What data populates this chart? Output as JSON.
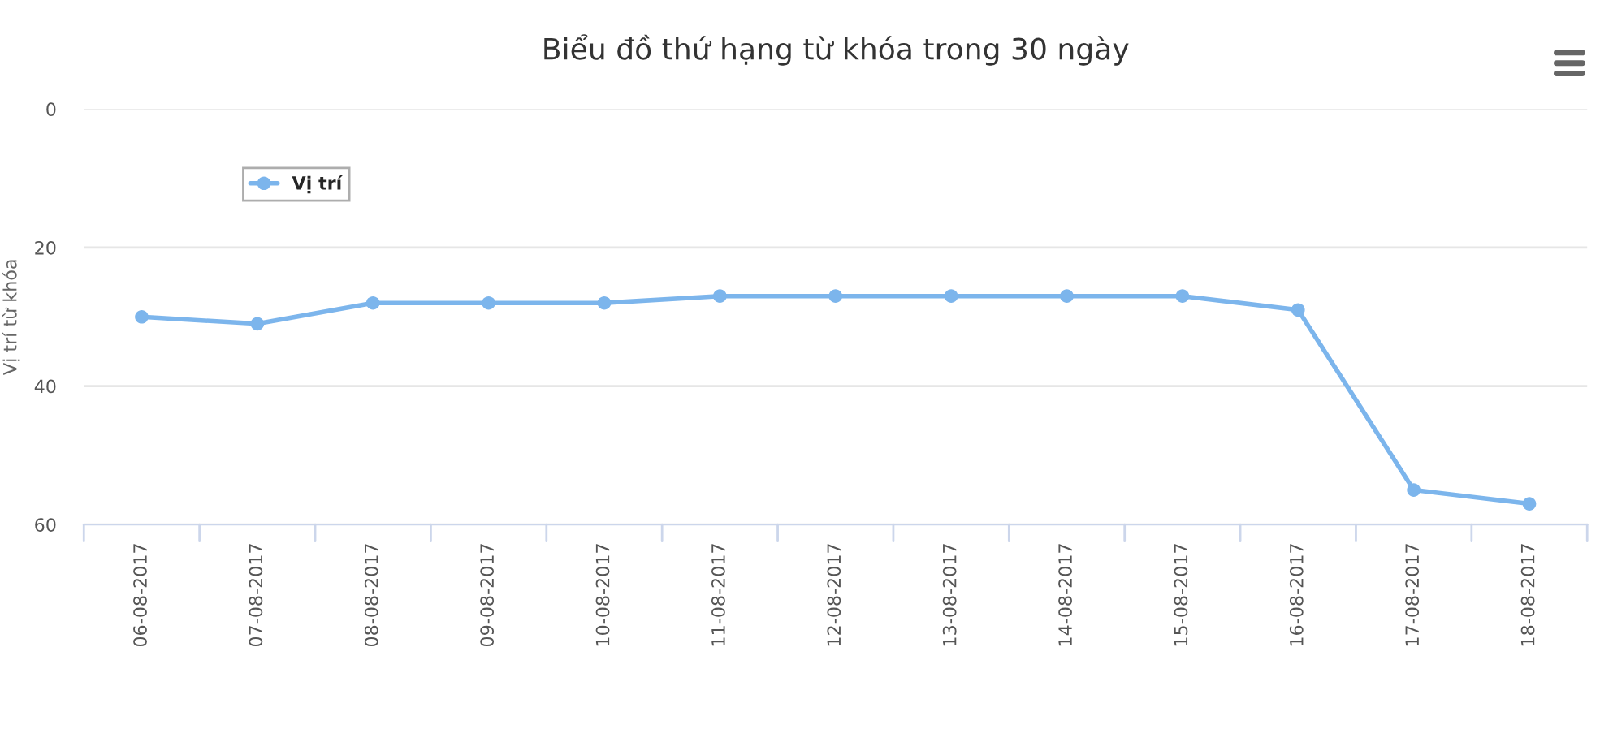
{
  "chart_data": {
    "type": "line",
    "title": "Biểu đồ thứ hạng từ khóa trong 30 ngày",
    "ylabel": "Vị trí từ khóa",
    "categories": [
      "06-08-2017",
      "07-08-2017",
      "08-08-2017",
      "09-08-2017",
      "10-08-2017",
      "11-08-2017",
      "12-08-2017",
      "13-08-2017",
      "14-08-2017",
      "15-08-2017",
      "16-08-2017",
      "17-08-2017",
      "18-08-2017"
    ],
    "series": [
      {
        "name": "Vị trí",
        "color": "#7cb5ec",
        "values": [
          30,
          31,
          28,
          28,
          28,
          27,
          27,
          27,
          27,
          27,
          29,
          55,
          57
        ]
      }
    ],
    "ylim": [
      60,
      0
    ],
    "yticks": [
      0,
      20,
      40,
      60
    ],
    "grid": "y",
    "legend": "top left",
    "marker": "circle",
    "line_style": "solid"
  }
}
